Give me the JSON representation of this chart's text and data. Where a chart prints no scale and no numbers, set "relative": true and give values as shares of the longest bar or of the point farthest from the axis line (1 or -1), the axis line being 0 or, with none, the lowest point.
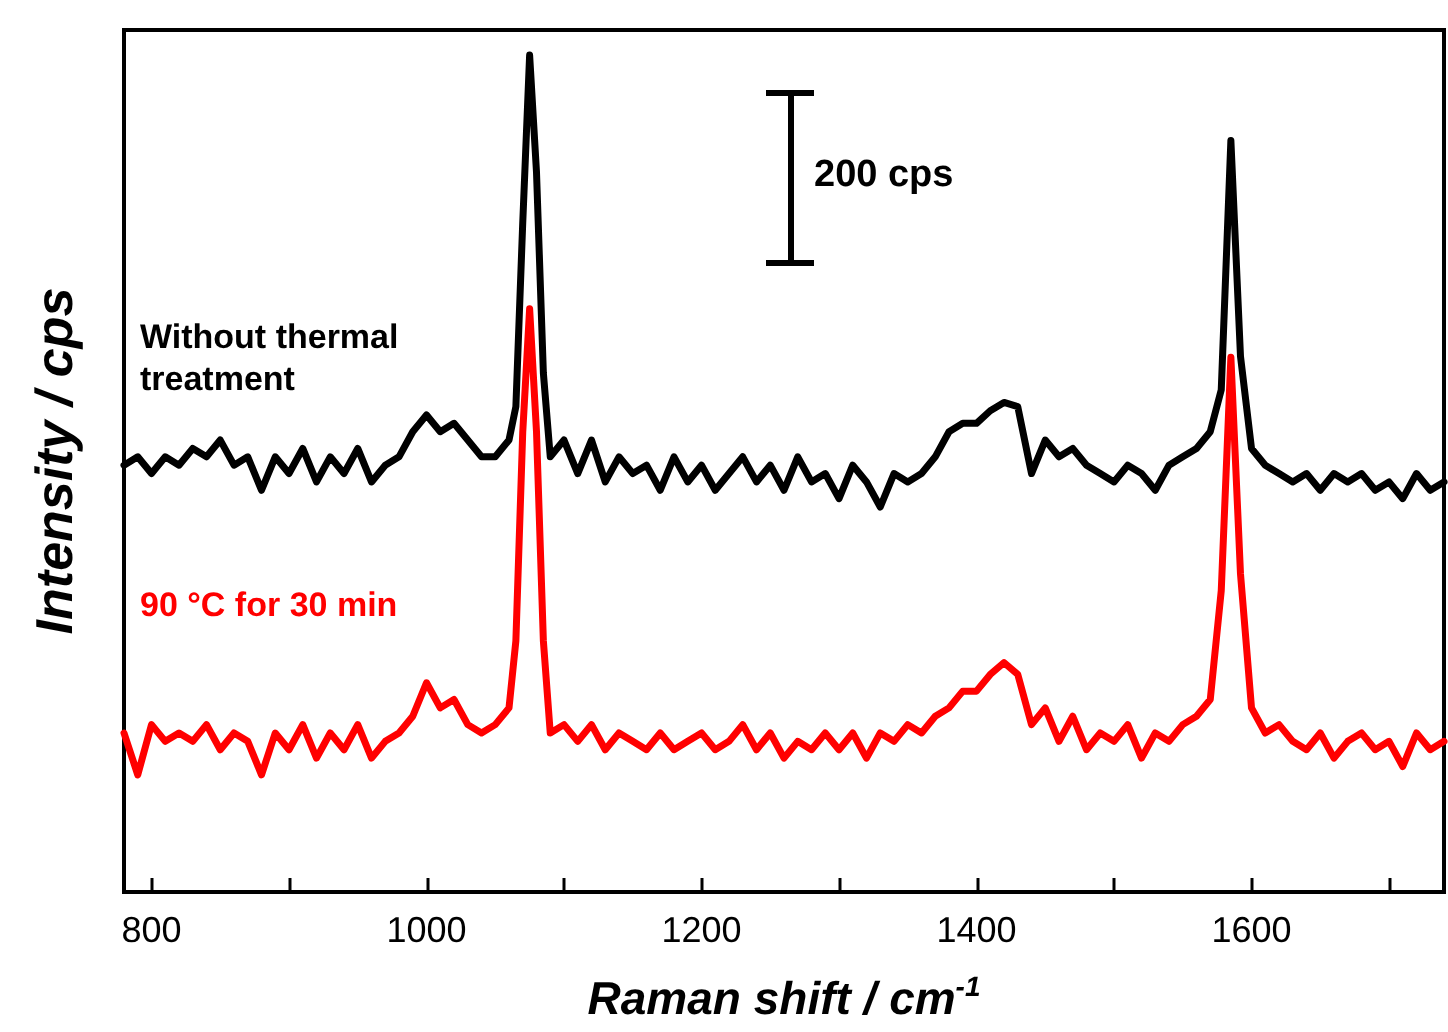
{
  "chart_data": {
    "type": "line",
    "relative": true,
    "xlabel": "Raman shift / cm$^{-1}$",
    "ylabel": "Intensity / cps",
    "annotations": [
      "200 cps"
    ],
    "marker": "none",
    "line_style": "solid",
    "xlim": [
      780,
      1740
    ],
    "xticks": [
      800,
      {
        "value": 900,
        "label": null
      },
      1000,
      {
        "value": 1100,
        "label": null
      },
      1200,
      {
        "value": 1300,
        "label": null
      },
      1400,
      {
        "value": 1500,
        "label": null
      },
      1600,
      {
        "value": 1700,
        "label": null
      }
    ],
    "x": [
      780,
      790,
      800,
      810,
      820,
      830,
      840,
      850,
      860,
      870,
      880,
      890,
      900,
      910,
      920,
      930,
      940,
      950,
      960,
      970,
      980,
      990,
      1000,
      1010,
      1020,
      1030,
      1040,
      1050,
      1060,
      1065,
      1070,
      1075,
      1080,
      1085,
      1090,
      1100,
      1110,
      1120,
      1130,
      1140,
      1150,
      1160,
      1170,
      1180,
      1190,
      1200,
      1210,
      1220,
      1230,
      1240,
      1250,
      1260,
      1270,
      1280,
      1290,
      1300,
      1310,
      1320,
      1330,
      1340,
      1350,
      1360,
      1370,
      1380,
      1390,
      1400,
      1410,
      1420,
      1430,
      1440,
      1450,
      1460,
      1470,
      1480,
      1490,
      1500,
      1510,
      1520,
      1530,
      1540,
      1550,
      1560,
      1570,
      1578,
      1585,
      1592,
      1600,
      1610,
      1620,
      1630,
      1640,
      1650,
      1660,
      1670,
      1680,
      1690,
      1700,
      1710,
      1720,
      1730,
      1740
    ],
    "series": [
      {
        "name": "Without thermal treatment",
        "color": "#000000",
        "values": [
          0.51,
          0.52,
          0.5,
          0.52,
          0.51,
          0.53,
          0.52,
          0.54,
          0.51,
          0.52,
          0.48,
          0.52,
          0.5,
          0.53,
          0.49,
          0.52,
          0.5,
          0.53,
          0.49,
          0.51,
          0.52,
          0.55,
          0.57,
          0.55,
          0.56,
          0.54,
          0.52,
          0.52,
          0.54,
          0.58,
          0.8,
          1.0,
          0.86,
          0.62,
          0.52,
          0.54,
          0.5,
          0.54,
          0.49,
          0.52,
          0.5,
          0.51,
          0.48,
          0.52,
          0.49,
          0.51,
          0.48,
          0.5,
          0.52,
          0.49,
          0.51,
          0.48,
          0.52,
          0.49,
          0.5,
          0.47,
          0.51,
          0.49,
          0.46,
          0.5,
          0.49,
          0.5,
          0.52,
          0.55,
          0.56,
          0.56,
          0.575,
          0.585,
          0.58,
          0.5,
          0.54,
          0.52,
          0.53,
          0.51,
          0.5,
          0.49,
          0.51,
          0.5,
          0.48,
          0.51,
          0.52,
          0.53,
          0.55,
          0.6,
          0.898,
          0.64,
          0.53,
          0.51,
          0.5,
          0.49,
          0.5,
          0.48,
          0.5,
          0.49,
          0.5,
          0.48,
          0.49,
          0.47,
          0.5,
          0.48,
          0.49
        ]
      },
      {
        "name": "90 °C for 30 min",
        "color": "#ff0000",
        "values": [
          0.19,
          0.14,
          0.2,
          0.18,
          0.19,
          0.18,
          0.2,
          0.17,
          0.19,
          0.18,
          0.14,
          0.19,
          0.17,
          0.2,
          0.16,
          0.19,
          0.17,
          0.2,
          0.16,
          0.18,
          0.19,
          0.21,
          0.25,
          0.22,
          0.23,
          0.2,
          0.19,
          0.2,
          0.22,
          0.3,
          0.55,
          0.697,
          0.55,
          0.3,
          0.19,
          0.2,
          0.18,
          0.2,
          0.17,
          0.19,
          0.18,
          0.17,
          0.19,
          0.17,
          0.18,
          0.19,
          0.17,
          0.18,
          0.2,
          0.17,
          0.19,
          0.16,
          0.18,
          0.17,
          0.19,
          0.17,
          0.19,
          0.16,
          0.19,
          0.18,
          0.2,
          0.19,
          0.21,
          0.22,
          0.24,
          0.24,
          0.26,
          0.274,
          0.26,
          0.2,
          0.22,
          0.18,
          0.21,
          0.17,
          0.19,
          0.18,
          0.2,
          0.16,
          0.19,
          0.18,
          0.2,
          0.21,
          0.23,
          0.36,
          0.639,
          0.38,
          0.22,
          0.19,
          0.2,
          0.18,
          0.17,
          0.19,
          0.16,
          0.18,
          0.19,
          0.17,
          0.18,
          0.15,
          0.19,
          0.17,
          0.18
        ]
      }
    ]
  }
}
